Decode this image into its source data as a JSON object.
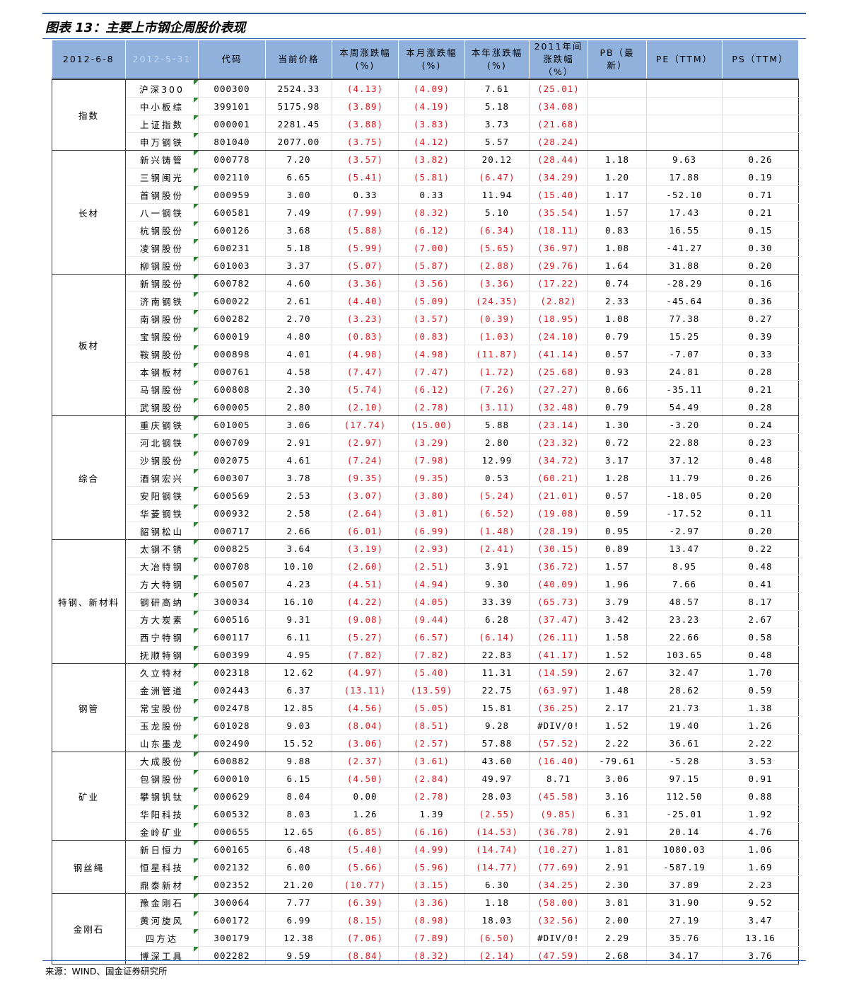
{
  "title": "图表 13：主要上市钢企周股价表现",
  "source": "来源：WIND、国金证券研究所",
  "headers": [
    "2012-6-8",
    "2012-5-31",
    "代码",
    "当前价格",
    "本周涨跌幅\n(%)",
    "本月涨跌幅\n(%)",
    "本年涨跌幅\n(%)",
    "2011年间\n涨跌幅\n（%）",
    "PB（最\n新）",
    "PE（TTM）",
    "PS（TTM）"
  ],
  "groups": [
    {
      "name": "指数",
      "rows": [
        [
          "沪深300",
          "000300",
          "2524.33",
          "(4.13)",
          "(4.09)",
          "7.61",
          "(25.01)",
          "",
          "",
          ""
        ],
        [
          "中小板综",
          "399101",
          "5175.98",
          "(3.89)",
          "(4.19)",
          "5.18",
          "(34.08)",
          "",
          "",
          ""
        ],
        [
          "上证指数",
          "000001",
          "2281.45",
          "(3.88)",
          "(3.83)",
          "3.73",
          "(21.68)",
          "",
          "",
          ""
        ],
        [
          "申万钢铁",
          "801040",
          "2077.00",
          "(3.75)",
          "(4.12)",
          "5.57",
          "(28.24)",
          "",
          "",
          ""
        ]
      ]
    },
    {
      "name": "长材",
      "rows": [
        [
          "新兴铸管",
          "000778",
          "7.20",
          "(3.57)",
          "(3.82)",
          "20.12",
          "(28.44)",
          "1.18",
          "9.63",
          "0.26"
        ],
        [
          "三钢闽光",
          "002110",
          "6.65",
          "(5.41)",
          "(5.81)",
          "(6.47)",
          "(34.29)",
          "1.20",
          "17.88",
          "0.19"
        ],
        [
          "首钢股份",
          "000959",
          "3.00",
          "0.33",
          "0.33",
          "11.94",
          "(15.40)",
          "1.17",
          "-52.10",
          "0.71"
        ],
        [
          "八一钢铁",
          "600581",
          "7.49",
          "(7.99)",
          "(8.32)",
          "5.10",
          "(35.54)",
          "1.57",
          "17.43",
          "0.21"
        ],
        [
          "杭钢股份",
          "600126",
          "3.68",
          "(5.88)",
          "(6.12)",
          "(6.34)",
          "(18.11)",
          "0.83",
          "16.55",
          "0.15"
        ],
        [
          "凌钢股份",
          "600231",
          "5.18",
          "(5.99)",
          "(7.00)",
          "(5.65)",
          "(36.97)",
          "1.08",
          "-41.27",
          "0.30"
        ],
        [
          "柳钢股份",
          "601003",
          "3.37",
          "(5.07)",
          "(5.87)",
          "(2.88)",
          "(29.76)",
          "1.64",
          "31.88",
          "0.20"
        ]
      ]
    },
    {
      "name": "板材",
      "rows": [
        [
          "新钢股份",
          "600782",
          "4.60",
          "(3.36)",
          "(3.56)",
          "(3.36)",
          "(17.22)",
          "0.74",
          "-28.29",
          "0.16"
        ],
        [
          "济南钢铁",
          "600022",
          "2.61",
          "(4.40)",
          "(5.09)",
          "(24.35)",
          "(2.82)",
          "2.33",
          "-45.64",
          "0.36"
        ],
        [
          "南钢股份",
          "600282",
          "2.70",
          "(3.23)",
          "(3.57)",
          "(0.39)",
          "(18.95)",
          "1.08",
          "77.38",
          "0.27"
        ],
        [
          "宝钢股份",
          "600019",
          "4.80",
          "(0.83)",
          "(0.83)",
          "(1.03)",
          "(24.10)",
          "0.79",
          "15.25",
          "0.39"
        ],
        [
          "鞍钢股份",
          "000898",
          "4.01",
          "(4.98)",
          "(4.98)",
          "(11.87)",
          "(41.14)",
          "0.57",
          "-7.07",
          "0.33"
        ],
        [
          "本钢板材",
          "000761",
          "4.58",
          "(7.47)",
          "(7.47)",
          "(1.72)",
          "(25.68)",
          "0.93",
          "24.81",
          "0.28"
        ],
        [
          "马钢股份",
          "600808",
          "2.30",
          "(5.74)",
          "(6.12)",
          "(7.26)",
          "(27.27)",
          "0.66",
          "-35.11",
          "0.21"
        ],
        [
          "武钢股份",
          "600005",
          "2.80",
          "(2.10)",
          "(2.78)",
          "(3.11)",
          "(32.48)",
          "0.79",
          "54.49",
          "0.28"
        ]
      ]
    },
    {
      "name": "综合",
      "rows": [
        [
          "重庆钢铁",
          "601005",
          "3.06",
          "(17.74)",
          "(15.00)",
          "5.88",
          "(23.14)",
          "1.30",
          "-3.20",
          "0.24"
        ],
        [
          "河北钢铁",
          "000709",
          "2.91",
          "(2.97)",
          "(3.29)",
          "2.80",
          "(23.32)",
          "0.72",
          "22.88",
          "0.23"
        ],
        [
          "沙钢股份",
          "002075",
          "4.61",
          "(7.24)",
          "(7.98)",
          "12.99",
          "(34.72)",
          "3.17",
          "37.12",
          "0.48"
        ],
        [
          "酒钢宏兴",
          "600307",
          "3.78",
          "(9.35)",
          "(9.35)",
          "0.53",
          "(60.21)",
          "1.28",
          "11.79",
          "0.26"
        ],
        [
          "安阳钢铁",
          "600569",
          "2.53",
          "(3.07)",
          "(3.80)",
          "(5.24)",
          "(21.01)",
          "0.57",
          "-18.05",
          "0.20"
        ],
        [
          "华菱钢铁",
          "000932",
          "2.58",
          "(2.64)",
          "(3.01)",
          "(6.52)",
          "(19.08)",
          "0.59",
          "-17.52",
          "0.11"
        ],
        [
          "韶钢松山",
          "000717",
          "2.66",
          "(6.01)",
          "(6.99)",
          "(1.48)",
          "(28.19)",
          "0.95",
          "-2.97",
          "0.20"
        ]
      ]
    },
    {
      "name": "特钢、新材料",
      "rows": [
        [
          "太钢不锈",
          "000825",
          "3.64",
          "(3.19)",
          "(2.93)",
          "(2.41)",
          "(30.15)",
          "0.89",
          "13.47",
          "0.22"
        ],
        [
          "大冶特钢",
          "000708",
          "10.10",
          "(2.60)",
          "(2.51)",
          "3.91",
          "(36.72)",
          "1.57",
          "8.95",
          "0.48"
        ],
        [
          "方大特钢",
          "600507",
          "4.23",
          "(4.51)",
          "(4.94)",
          "9.30",
          "(40.09)",
          "1.96",
          "7.66",
          "0.41"
        ],
        [
          "钢研高纳",
          "300034",
          "16.10",
          "(4.22)",
          "(4.05)",
          "33.39",
          "(65.73)",
          "3.79",
          "48.57",
          "8.17"
        ],
        [
          "方大炭素",
          "600516",
          "9.31",
          "(9.08)",
          "(9.44)",
          "6.28",
          "(37.47)",
          "3.42",
          "23.23",
          "2.67"
        ],
        [
          "西宁特钢",
          "600117",
          "6.11",
          "(5.27)",
          "(6.57)",
          "(6.14)",
          "(26.11)",
          "1.58",
          "22.66",
          "0.58"
        ],
        [
          "抚顺特钢",
          "600399",
          "4.95",
          "(7.82)",
          "(7.82)",
          "22.83",
          "(41.17)",
          "1.52",
          "103.65",
          "0.48"
        ]
      ]
    },
    {
      "name": "钢管",
      "rows": [
        [
          "久立特材",
          "002318",
          "12.62",
          "(4.97)",
          "(5.40)",
          "11.31",
          "(14.59)",
          "2.67",
          "32.47",
          "1.70"
        ],
        [
          "金洲管道",
          "002443",
          "6.37",
          "(13.11)",
          "(13.59)",
          "22.75",
          "(63.97)",
          "1.48",
          "28.62",
          "0.59"
        ],
        [
          "常宝股份",
          "002478",
          "12.85",
          "(4.56)",
          "(5.05)",
          "15.81",
          "(36.25)",
          "2.17",
          "21.73",
          "1.38"
        ],
        [
          "玉龙股份",
          "601028",
          "9.03",
          "(8.04)",
          "(8.51)",
          "9.28",
          "#DIV/0!",
          "1.52",
          "19.40",
          "1.26"
        ],
        [
          "山东墨龙",
          "002490",
          "15.52",
          "(3.06)",
          "(2.57)",
          "57.88",
          "(57.52)",
          "2.22",
          "36.61",
          "2.22"
        ]
      ]
    },
    {
      "name": "矿业",
      "rows": [
        [
          "大成股份",
          "600882",
          "9.88",
          "(2.37)",
          "(3.61)",
          "43.60",
          "(16.40)",
          "-79.61",
          "-5.28",
          "3.53"
        ],
        [
          "包钢股份",
          "600010",
          "6.15",
          "(4.50)",
          "(2.84)",
          "49.97",
          "8.71",
          "3.06",
          "97.15",
          "0.91"
        ],
        [
          "攀钢钒钛",
          "000629",
          "8.04",
          "0.00",
          "(2.78)",
          "28.03",
          "(45.58)",
          "3.16",
          "112.50",
          "0.88"
        ],
        [
          "华阳科技",
          "600532",
          "8.03",
          "1.26",
          "1.39",
          "(2.55)",
          "(9.85)",
          "6.31",
          "-25.01",
          "1.92"
        ],
        [
          "金岭矿业",
          "000655",
          "12.65",
          "(6.85)",
          "(6.16)",
          "(14.53)",
          "(36.78)",
          "2.91",
          "20.14",
          "4.76"
        ]
      ]
    },
    {
      "name": "钢丝绳",
      "rows": [
        [
          "新日恒力",
          "600165",
          "6.48",
          "(5.40)",
          "(4.99)",
          "(14.74)",
          "(10.27)",
          "1.81",
          "1080.03",
          "1.06"
        ],
        [
          "恒星科技",
          "002132",
          "6.00",
          "(5.66)",
          "(5.96)",
          "(14.77)",
          "(77.69)",
          "2.91",
          "-587.19",
          "1.69"
        ],
        [
          "鼎泰新材",
          "002352",
          "21.20",
          "(10.77)",
          "(3.15)",
          "6.30",
          "(34.25)",
          "2.30",
          "37.89",
          "2.23"
        ]
      ]
    },
    {
      "name": "金刚石",
      "rows": [
        [
          "豫金刚石",
          "300064",
          "7.77",
          "(6.39)",
          "(3.36)",
          "1.18",
          "(58.00)",
          "3.81",
          "31.90",
          "9.52"
        ],
        [
          "黄河旋风",
          "600172",
          "6.99",
          "(8.15)",
          "(8.98)",
          "18.03",
          "(32.56)",
          "2.00",
          "27.19",
          "3.47"
        ],
        [
          "四方达",
          "300179",
          "12.38",
          "(7.06)",
          "(7.89)",
          "(6.50)",
          "#DIV/0!",
          "2.29",
          "35.76",
          "13.16"
        ],
        [
          "博深工具",
          "002282",
          "9.59",
          "(8.84)",
          "(8.32)",
          "(2.14)",
          "(47.59)",
          "2.68",
          "34.17",
          "3.76"
        ]
      ]
    }
  ]
}
